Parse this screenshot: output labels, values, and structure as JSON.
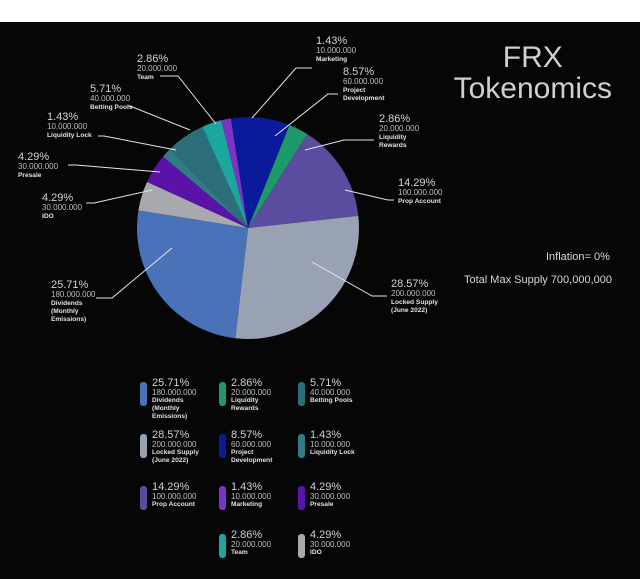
{
  "title": {
    "line1": "FRX",
    "line2": "Tokenomics"
  },
  "info": {
    "inflation": "Inflation= 0%",
    "supply": "Total Max Supply 700,000,000"
  },
  "chart_data": {
    "type": "pie",
    "title": "FRX Tokenomics",
    "slices": [
      {
        "label": "Marketing",
        "pct": "1.43%",
        "amount": "10.000.000",
        "value": 10000000,
        "color": "#7b34c6"
      },
      {
        "label": "Project Development",
        "pct": "8.57%",
        "amount": "60.000.000",
        "value": 60000000,
        "color": "#0a1a9a"
      },
      {
        "label": "Liquidity Rewards",
        "pct": "2.86%",
        "amount": "20.000.000",
        "value": 20000000,
        "color": "#1e9a6a"
      },
      {
        "label": "Prop Account",
        "pct": "14.29%",
        "amount": "100.000.000",
        "value": 100000000,
        "color": "#5a4c9e"
      },
      {
        "label": "Locked Supply (June 2022)",
        "pct": "28.57%",
        "amount": "200.000.000",
        "value": 200000000,
        "color": "#98a2b3"
      },
      {
        "label": "Dividends (Monthly Emissions)",
        "pct": "25.71%",
        "amount": "180.000.000",
        "value": 180000000,
        "color": "#4a72b8"
      },
      {
        "label": "IDO",
        "pct": "4.29%",
        "amount": "30.000.000",
        "value": 30000000,
        "color": "#a8a8ae"
      },
      {
        "label": "Presale",
        "pct": "4.29%",
        "amount": "30.000.000",
        "value": 30000000,
        "color": "#5b12a8"
      },
      {
        "label": "Liquidity Lock",
        "pct": "1.43%",
        "amount": "10.000.000",
        "value": 10000000,
        "color": "#2f7c86"
      },
      {
        "label": "Betting Pools",
        "pct": "5.71%",
        "amount": "40.000.000",
        "value": 40000000,
        "color": "#2c6f7a"
      },
      {
        "label": "Team",
        "pct": "2.86%",
        "amount": "20.000.000",
        "value": 20000000,
        "color": "#19a7a0"
      }
    ]
  },
  "legend": [
    {
      "pct": "25.71%",
      "amount": "180.000.000",
      "name_lines": [
        "Dividends",
        "(Monthly",
        "Emissions)"
      ],
      "color": "#4a72b8"
    },
    {
      "pct": "2.86%",
      "amount": "20.000.000",
      "name_lines": [
        "Liquidity",
        "Rewards"
      ],
      "color": "#1e9a6a"
    },
    {
      "pct": "5.71%",
      "amount": "40.000.000",
      "name_lines": [
        "Betting Pools"
      ],
      "color": "#2c6f7a"
    },
    {
      "pct": "28.57%",
      "amount": "200.000.000",
      "name_lines": [
        "Locked Supply",
        "(June 2022)"
      ],
      "color": "#98a2b3"
    },
    {
      "pct": "8.57%",
      "amount": "60.000.000",
      "name_lines": [
        "Project",
        "Development"
      ],
      "color": "#0a1a9a"
    },
    {
      "pct": "1.43%",
      "amount": "10.000.000",
      "name_lines": [
        "Liquidity Lock"
      ],
      "color": "#2f7c86"
    },
    {
      "pct": "14.29%",
      "amount": "100.000.000",
      "name_lines": [
        "Prop Account"
      ],
      "color": "#5a4c9e"
    },
    {
      "pct": "1.43%",
      "amount": "10.000.000",
      "name_lines": [
        "Marketing"
      ],
      "color": "#7b34c6"
    },
    {
      "pct": "4.29%",
      "amount": "30.000.000",
      "name_lines": [
        "Presale"
      ],
      "color": "#5b12a8"
    },
    {
      "pct": "2.86%",
      "amount": "20.000.000",
      "name_lines": [
        "Team"
      ],
      "color": "#19a7a0"
    },
    {
      "pct": "4.29%",
      "amount": "30.000.000",
      "name_lines": [
        "IDO"
      ],
      "color": "#a8a8ae"
    }
  ]
}
